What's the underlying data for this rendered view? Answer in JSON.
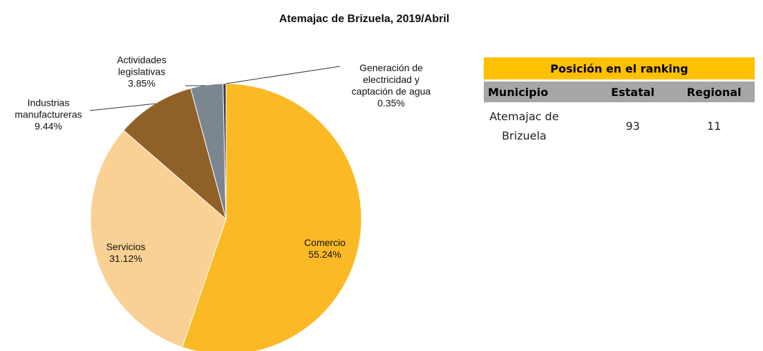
{
  "chart_data": {
    "type": "pie",
    "title": "Atemajac de Brizuela, 2019/Abril",
    "categories": [
      "Comercio",
      "Servicios",
      "Industrias manufactureras",
      "Actividades legislativas",
      "Generación de electricidad y captación de agua"
    ],
    "values": [
      55.24,
      31.12,
      9.44,
      3.85,
      0.35
    ],
    "value_labels": [
      "55.24%",
      "31.12%",
      "9.44%",
      "3.85%",
      "0.35%"
    ],
    "colors": [
      "#FBBA25",
      "#F9D194",
      "#8F6128",
      "#7B8790",
      "#3A3A3A"
    ]
  },
  "table": {
    "title": "Posición en el ranking",
    "headers": [
      "Municipio",
      "Estatal",
      "Regional"
    ],
    "rows": [
      [
        "Atemajac de Brizuela",
        "93",
        "11"
      ]
    ]
  }
}
